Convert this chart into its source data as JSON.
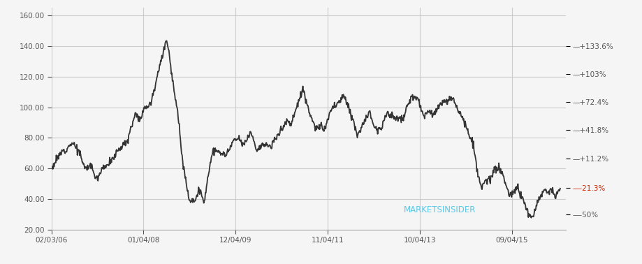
{
  "background_color": "#f5f5f5",
  "line_color": "#333333",
  "line_width": 1.3,
  "ylim": [
    20,
    165
  ],
  "yticks_left": [
    20.0,
    40.0,
    60.0,
    80.0,
    100.0,
    120.0,
    140.0,
    160.0
  ],
  "yticks_right_labels": [
    "+133.6%",
    "+103%",
    "+72.4%",
    "+41.8%",
    "+11.2%",
    "-21.3%",
    "-50%"
  ],
  "yticks_right_values": [
    133.6,
    103.0,
    72.4,
    41.8,
    11.2,
    -21.3,
    -50.0
  ],
  "xtick_labels": [
    "02/03/06",
    "01/04/08",
    "12/04/09",
    "11/04/11",
    "10/04/13",
    "09/04/15"
  ],
  "base_price": 60.0,
  "grid_color": "#cccccc",
  "watermark": "MARKETSINSIDER",
  "watermark_color": "#5bc8e8",
  "last_pct_color": "#cc2200",
  "last_pct_label": "-21.3%",
  "tick_label_color": "#555555"
}
